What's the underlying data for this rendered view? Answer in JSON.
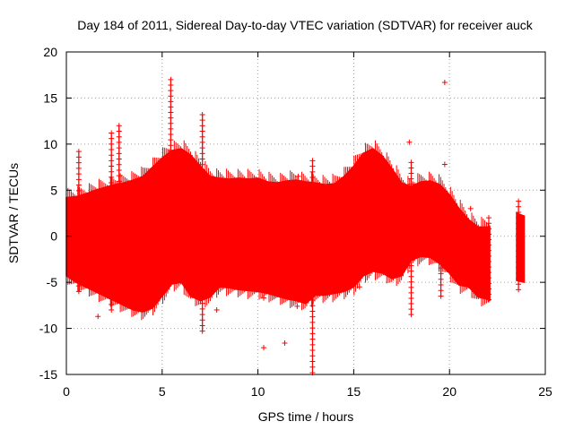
{
  "chart_data": {
    "type": "scatter",
    "title": "Day 184 of 2011, Sidereal Day-to-day VTEC variation (SDTVAR) for receiver auck",
    "xlabel": "GPS time / hours",
    "ylabel": "SDTVAR / TECUs",
    "xlim": [
      0,
      25
    ],
    "ylim": [
      -15,
      20
    ],
    "xticks": [
      0,
      5,
      10,
      15,
      20,
      25
    ],
    "yticks": [
      -15,
      -10,
      -5,
      0,
      5,
      10,
      15,
      20
    ],
    "grid": true,
    "marker": "+",
    "series": [
      {
        "name": "SDTVAR",
        "color": "#ff0000",
        "dense_band": {
          "x": [
            0.0,
            0.5,
            1.0,
            1.5,
            2.0,
            2.5,
            3.0,
            3.5,
            4.0,
            4.5,
            5.0,
            5.5,
            6.0,
            6.5,
            7.0,
            7.5,
            8.0,
            8.5,
            9.0,
            9.5,
            10.0,
            10.5,
            11.0,
            11.5,
            12.0,
            12.5,
            13.0,
            13.5,
            14.0,
            14.5,
            15.0,
            15.5,
            16.0,
            16.5,
            17.0,
            17.5,
            18.0,
            18.5,
            19.0,
            19.5,
            20.0,
            20.5,
            21.0,
            21.5,
            22.1
          ],
          "upper": [
            4.2,
            4.3,
            4.6,
            5.0,
            5.3,
            5.6,
            5.8,
            6.1,
            6.5,
            7.5,
            8.5,
            9.3,
            9.5,
            8.8,
            7.6,
            6.5,
            6.3,
            6.2,
            6.3,
            6.2,
            6.3,
            5.9,
            5.8,
            6.0,
            6.1,
            5.9,
            5.8,
            5.6,
            5.7,
            6.5,
            7.6,
            9.0,
            9.5,
            8.7,
            7.3,
            5.8,
            5.4,
            5.9,
            6.0,
            5.6,
            4.5,
            3.0,
            1.8,
            1.0,
            1.0
          ],
          "lower": [
            -4.3,
            -5.0,
            -5.5,
            -6.0,
            -6.5,
            -7.0,
            -7.5,
            -8.0,
            -8.2,
            -7.8,
            -6.5,
            -5.2,
            -5.0,
            -6.5,
            -7.0,
            -6.6,
            -5.5,
            -5.6,
            -5.8,
            -5.9,
            -6.0,
            -6.2,
            -6.5,
            -6.8,
            -7.0,
            -7.3,
            -6.4,
            -6.4,
            -6.2,
            -6.0,
            -5.5,
            -4.3,
            -3.8,
            -4.0,
            -4.6,
            -4.3,
            -2.6,
            -2.2,
            -2.3,
            -3.0,
            -4.0,
            -5.3,
            -5.5,
            -6.6,
            -6.9
          ]
        },
        "gap_segment": {
          "x": [
            23.5,
            23.9
          ],
          "upper": [
            2.5,
            2.2
          ],
          "lower": [
            -4.8,
            -5.0
          ]
        },
        "spikes": [
          {
            "x": 0.65,
            "y_max": 9.2,
            "y_min": -6.0
          },
          {
            "x": 2.35,
            "y_max": 11.2,
            "y_min": -8.0
          },
          {
            "x": 2.75,
            "y_max": 12.0,
            "y_min": -5.5
          },
          {
            "x": 5.45,
            "y_max": 17.0,
            "y_min": -5.0
          },
          {
            "x": 7.1,
            "y_max": 13.2,
            "y_min": -10.3
          },
          {
            "x": 12.85,
            "y_max": 8.2,
            "y_min": -14.8
          },
          {
            "x": 18.0,
            "y_max": 8.0,
            "y_min": -8.5
          },
          {
            "x": 19.55,
            "y_max": 4.5,
            "y_min": -6.5
          },
          {
            "x": 22.05,
            "y_max": 2.0,
            "y_min": -6.9
          },
          {
            "x": 23.6,
            "y_max": 3.8,
            "y_min": -5.8
          }
        ],
        "outliers": [
          {
            "x": 1.65,
            "y": -8.7
          },
          {
            "x": 7.85,
            "y": -8.0
          },
          {
            "x": 10.3,
            "y": -6.7
          },
          {
            "x": 10.3,
            "y": -12.1
          },
          {
            "x": 11.4,
            "y": -11.6
          },
          {
            "x": 12.05,
            "y": -7.6
          },
          {
            "x": 12.1,
            "y": 6.5
          },
          {
            "x": 15.3,
            "y": -5.5
          },
          {
            "x": 17.9,
            "y": 10.2
          },
          {
            "x": 19.75,
            "y": 16.7
          },
          {
            "x": 19.75,
            "y": 7.8
          },
          {
            "x": 21.1,
            "y": 3.0
          }
        ]
      }
    ]
  }
}
